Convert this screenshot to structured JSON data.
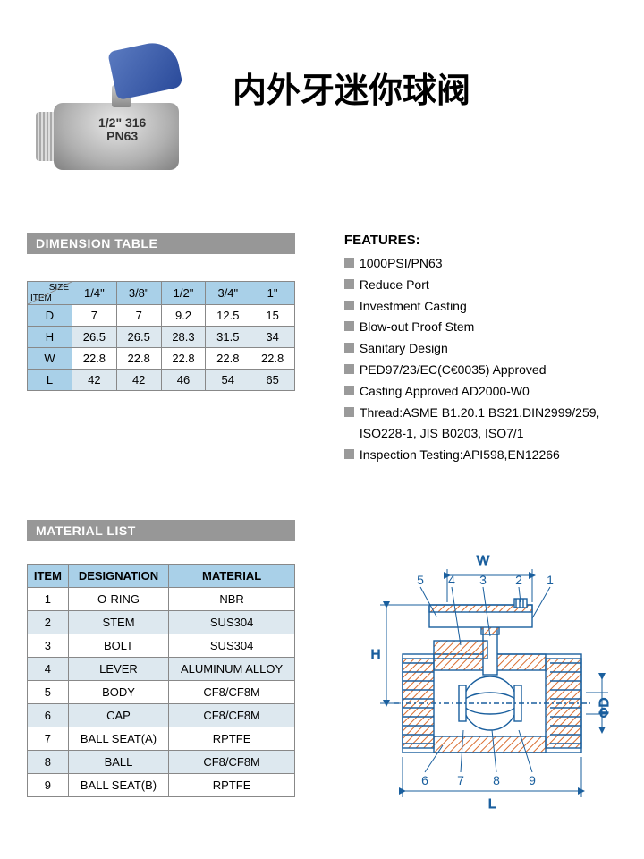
{
  "title": "内外牙迷你球阀",
  "product_marking": {
    "line1": "1/2\" 316",
    "line2": "PN63"
  },
  "dimension_section_label": "DIMENSION TABLE",
  "material_section_label": "MATERIAL LIST",
  "features_heading": "FEATURES:",
  "features": [
    "1000PSI/PN63",
    "Reduce Port",
    "Investment Casting",
    "Blow-out Proof Stem",
    "Sanitary Design",
    "PED97/23/EC(C€0035) Approved",
    "Casting Approved AD2000-W0",
    "Thread:ASME B1.20.1   BS21.DIN2999/259,",
    "Inspection Testing:API598,EN12266"
  ],
  "feature_indent_lines": {
    "7": "ISO228-1, JIS B0203, ISO7/1"
  },
  "dimension_table": {
    "corner": {
      "top": "SIZE",
      "left": "ITEM"
    },
    "sizes": [
      "1/4\"",
      "3/8\"",
      "1/2\"",
      "3/4\"",
      "1\""
    ],
    "rows": [
      {
        "label": "D",
        "vals": [
          "7",
          "7",
          "9.2",
          "12.5",
          "15"
        ]
      },
      {
        "label": "H",
        "vals": [
          "26.5",
          "26.5",
          "28.3",
          "31.5",
          "34"
        ]
      },
      {
        "label": "W",
        "vals": [
          "22.8",
          "22.8",
          "22.8",
          "22.8",
          "22.8"
        ]
      },
      {
        "label": "L",
        "vals": [
          "42",
          "42",
          "46",
          "54",
          "65"
        ]
      }
    ]
  },
  "material_table": {
    "headers": [
      "ITEM",
      "DESIGNATION",
      "MATERIAL"
    ],
    "rows": [
      [
        "1",
        "O-RING",
        "NBR"
      ],
      [
        "2",
        "STEM",
        "SUS304"
      ],
      [
        "3",
        "BOLT",
        "SUS304"
      ],
      [
        "4",
        "LEVER",
        "ALUMINUM ALLOY"
      ],
      [
        "5",
        "BODY",
        "CF8/CF8M"
      ],
      [
        "6",
        "CAP",
        "CF8/CF8M"
      ],
      [
        "7",
        "BALL SEAT(A)",
        "RPTFE"
      ],
      [
        "8",
        "BALL",
        "CF8/CF8M"
      ],
      [
        "9",
        "BALL SEAT(B)",
        "RPTFE"
      ]
    ]
  },
  "diagram": {
    "callouts_top": [
      "5",
      "4",
      "3",
      "2",
      "1"
    ],
    "callouts_bottom": [
      "6",
      "7",
      "8",
      "9"
    ],
    "dim_labels": {
      "W": "W",
      "H": "H",
      "L": "L",
      "D": "ΦD"
    },
    "colors": {
      "stroke": "#1a5f9e",
      "hatch": "#d96c2e",
      "fill": "#ffffff"
    }
  },
  "colors": {
    "section_bar": "#979797",
    "table_header": "#a9d0e8",
    "table_stripe": "#dde8ef",
    "bullet": "#9a9a9a",
    "handle": "#3d5ca8"
  }
}
